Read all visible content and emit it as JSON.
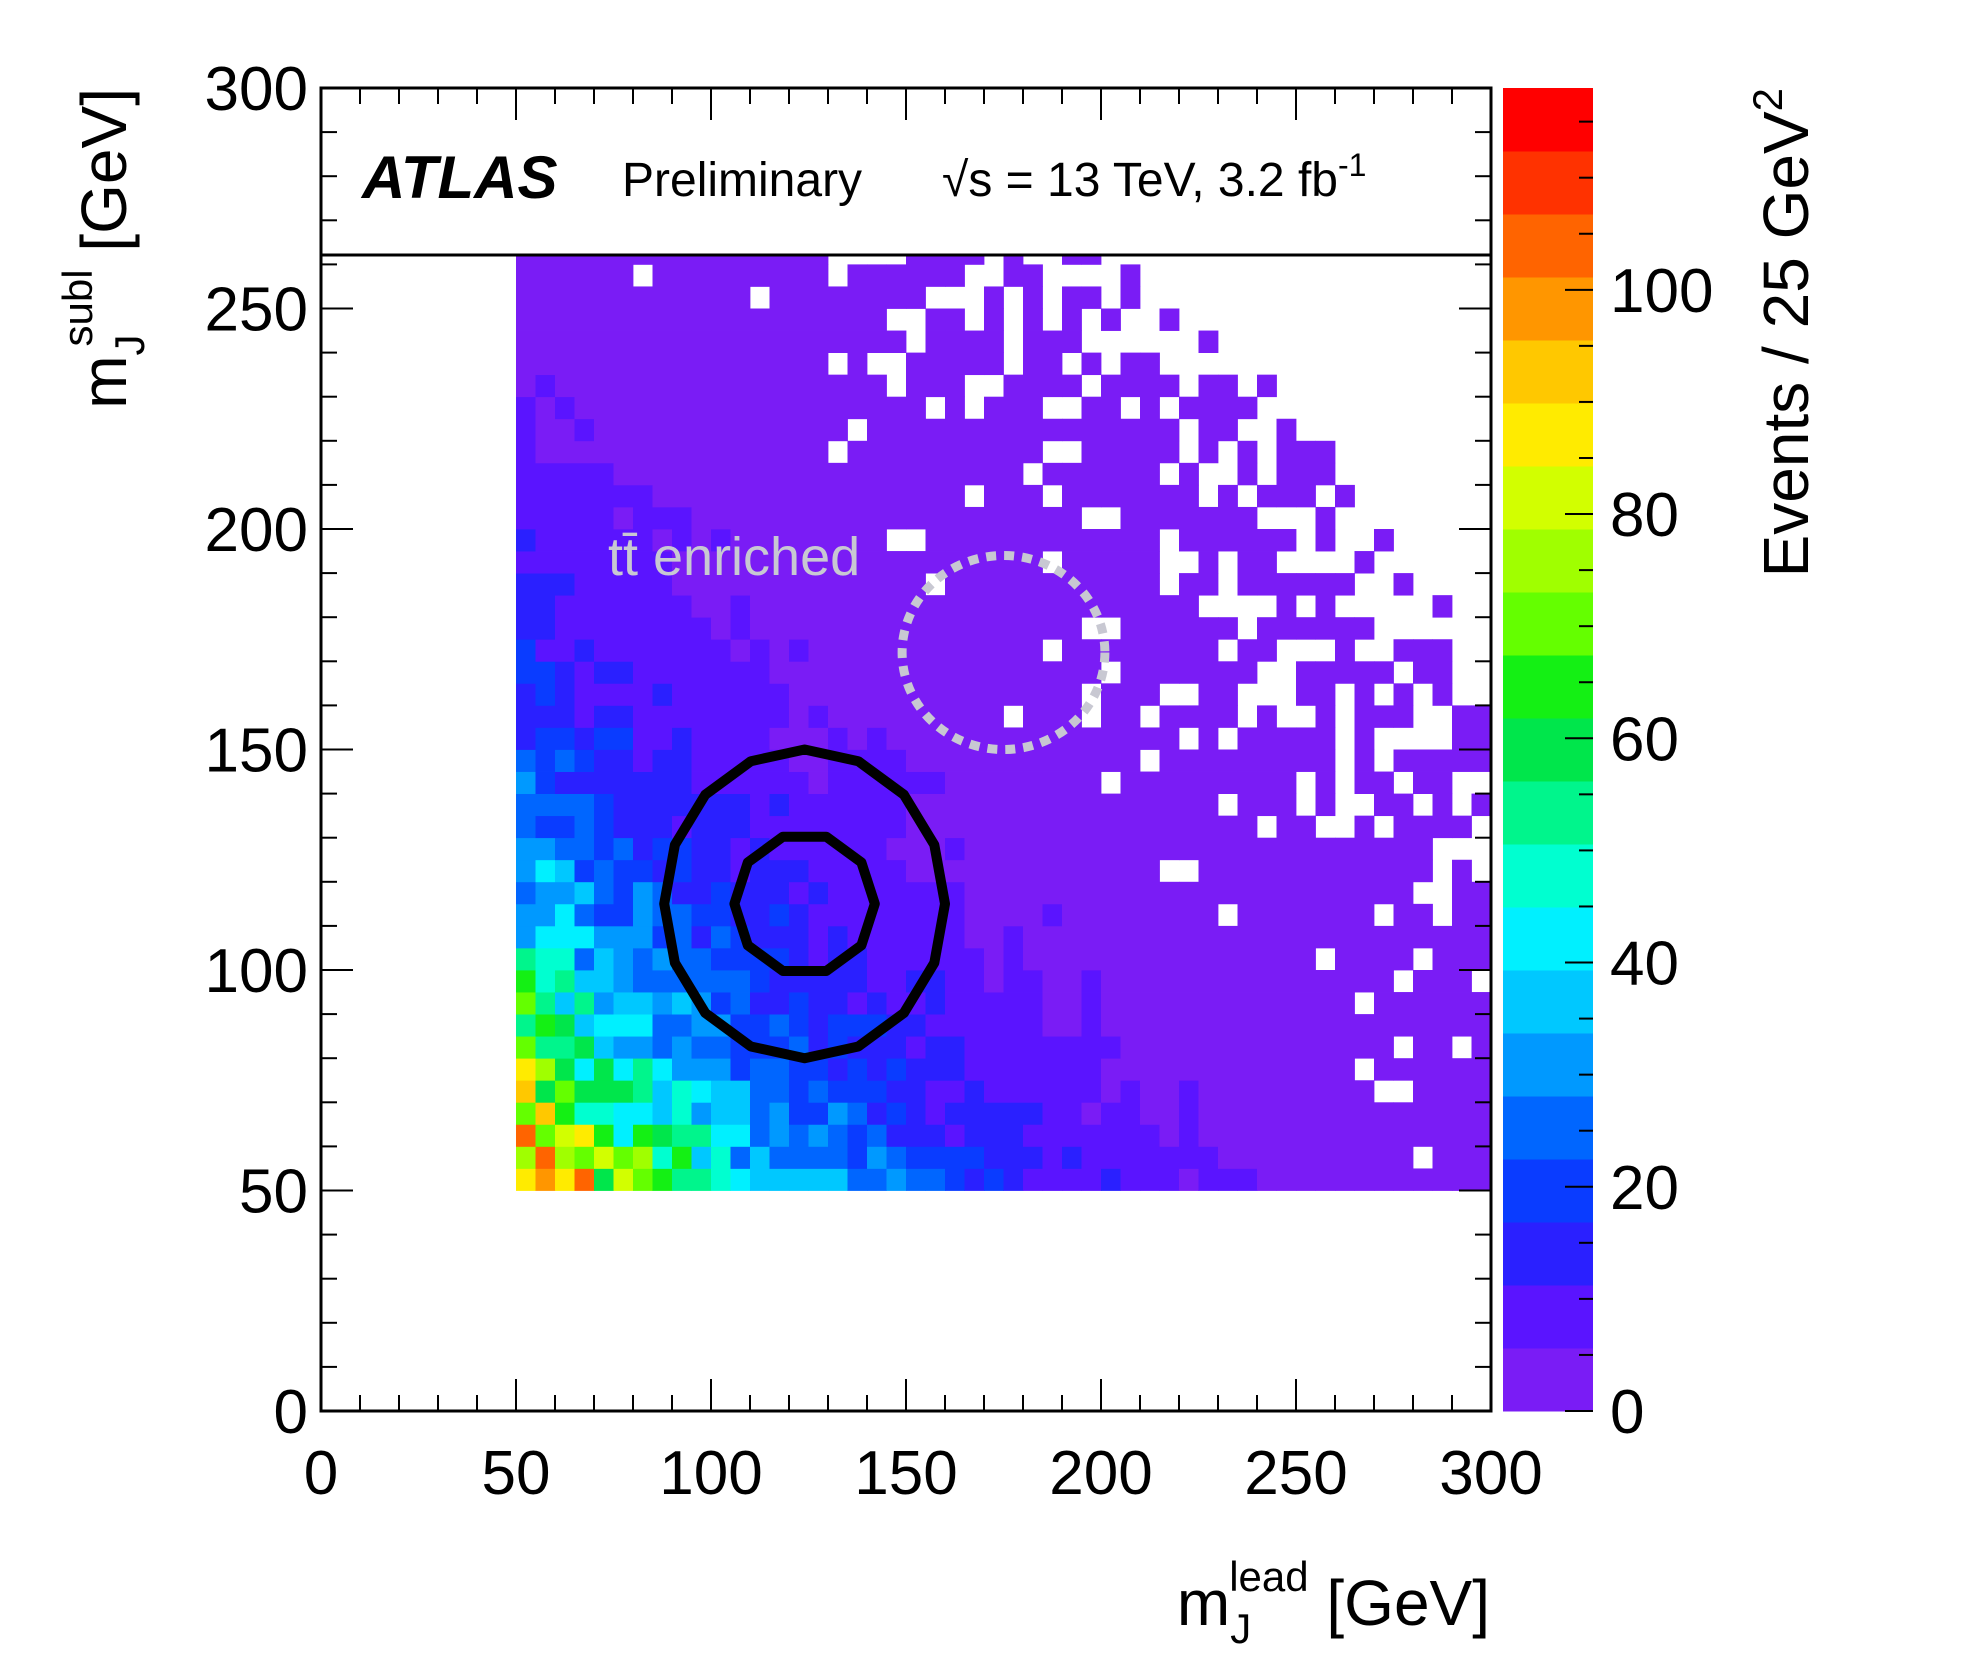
{
  "chart_data": {
    "type": "heatmap",
    "x_label": {
      "main": "m",
      "sub": "J",
      "sup": "lead",
      "unit": " [GeV]"
    },
    "y_label": {
      "main": "m",
      "sub": "J",
      "sup": "subl",
      "unit": " [GeV]"
    },
    "z_label": {
      "main": "Events / 25 GeV",
      "sup": "2"
    },
    "x_range": [
      0,
      300
    ],
    "y_range": [
      0,
      300
    ],
    "z_range": [
      0,
      118
    ],
    "x_ticks": [
      "0",
      "50",
      "100",
      "150",
      "200",
      "250",
      "300"
    ],
    "y_ticks": [
      "0",
      "50",
      "100",
      "150",
      "200",
      "250",
      "300"
    ],
    "z_ticks": [
      "0",
      "20",
      "40",
      "60",
      "80",
      "100"
    ],
    "bin_width": 5,
    "data_region": {
      "x": [
        50,
        300
      ],
      "y": [
        50,
        262
      ]
    },
    "atlas_label": {
      "bold": "ATLAS",
      "rest": "Preliminary",
      "energy": "√s = 13 TeV, 3.2 fb",
      "energy_sup": "-1"
    },
    "annotation": "tt̄ enriched",
    "signal_region_center": [
      124,
      115
    ],
    "control_region_center": [
      175,
      172
    ],
    "colors": {
      "palette": [
        "#7a1cf5",
        "#5a14ff",
        "#2a20ff",
        "#0a3cff",
        "#0066ff",
        "#0099ff",
        "#00c8ff",
        "#00f0ff",
        "#00ffd0",
        "#00f58c",
        "#00e64b",
        "#14f014",
        "#64ff00",
        "#a0ff00",
        "#d2ff00",
        "#ffeb00",
        "#ffc800",
        "#ff9600",
        "#ff6400",
        "#ff3200",
        "#ff0000"
      ],
      "signal_contour": "#000000",
      "control_contour": "#c8c8d2"
    }
  }
}
